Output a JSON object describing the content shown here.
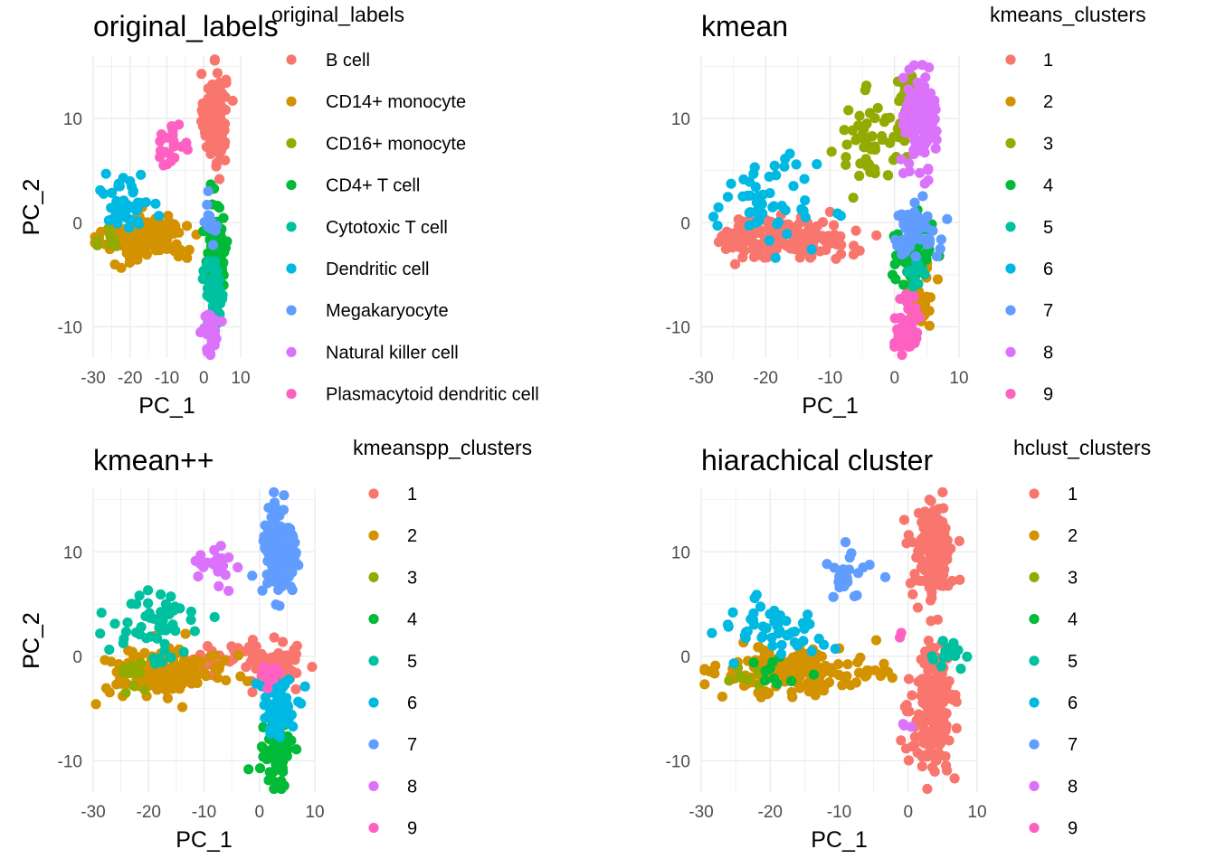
{
  "palette": [
    "#F8766D",
    "#D39200",
    "#93AA00",
    "#00BA38",
    "#00C19F",
    "#00B9E3",
    "#619CFF",
    "#DB72FB",
    "#FF61C3"
  ],
  "chart_data": [
    {
      "type": "scatter",
      "title": "original_labels",
      "xlabel": "PC_1",
      "ylabel": "PC_2",
      "xlim": [
        -30,
        10
      ],
      "ylim": [
        -13,
        16
      ],
      "xticks": [
        -30,
        -20,
        -10,
        0,
        10
      ],
      "xtick_labels": [
        "-30",
        "-20",
        "-10",
        "0",
        "10"
      ],
      "yticks": [
        -10,
        0,
        10
      ],
      "ytick_labels": [
        "-10",
        "0",
        "10"
      ],
      "grid": true,
      "legend": {
        "title": "original_labels",
        "placement": "right",
        "entries": [
          "B cell",
          "CD14+ monocyte",
          "CD16+ monocyte",
          "CD4+ T cell",
          "Cytotoxic T cell",
          "Dendritic cell",
          "Megakaryocyte",
          "Natural killer cell",
          "Plasmacytoid dendritic cell"
        ]
      },
      "series": [
        {
          "name": "B cell",
          "color_index": 0,
          "clusters": [
            {
              "cx": 3,
              "cy": 10,
              "sx": 1.5,
              "sy": 2.2,
              "n": 160
            }
          ]
        },
        {
          "name": "CD14+ monocyte",
          "color_index": 1,
          "clusters": [
            {
              "cx": -16,
              "cy": -1.5,
              "sx": 5.5,
              "sy": 1.1,
              "n": 140
            }
          ]
        },
        {
          "name": "CD16+ monocyte",
          "color_index": 2,
          "clusters": [
            {
              "cx": -25,
              "cy": -1.5,
              "sx": 1.5,
              "sy": 0.8,
              "n": 12
            }
          ]
        },
        {
          "name": "CD4+ T cell",
          "color_index": 3,
          "clusters": [
            {
              "cx": 3.5,
              "cy": -2.5,
              "sx": 1.5,
              "sy": 2.2,
              "n": 90
            }
          ]
        },
        {
          "name": "Cytotoxic T cell",
          "color_index": 4,
          "clusters": [
            {
              "cx": 3,
              "cy": -7,
              "sx": 1.2,
              "sy": 1.5,
              "n": 70
            }
          ]
        },
        {
          "name": "Dendritic cell",
          "color_index": 5,
          "clusters": [
            {
              "cx": -21,
              "cy": 2,
              "sx": 3,
              "sy": 1.5,
              "n": 45
            }
          ]
        },
        {
          "name": "Megakaryocyte",
          "color_index": 6,
          "clusters": [
            {
              "cx": 2,
              "cy": 0,
              "sx": 1.2,
              "sy": 1.0,
              "n": 12
            }
          ]
        },
        {
          "name": "Natural killer cell",
          "color_index": 7,
          "clusters": [
            {
              "cx": 2,
              "cy": -10.5,
              "sx": 1.0,
              "sy": 1.0,
              "n": 50
            }
          ]
        },
        {
          "name": "Plasmacytoid dendritic cell",
          "color_index": 8,
          "clusters": [
            {
              "cx": -9,
              "cy": 7.5,
              "sx": 2.5,
              "sy": 1.0,
              "n": 22
            }
          ]
        }
      ]
    },
    {
      "type": "scatter",
      "title": "kmean",
      "xlabel": "PC_1",
      "ylabel": "PC_2",
      "xlim": [
        -30,
        10
      ],
      "ylim": [
        -13,
        16
      ],
      "xticks": [
        -30,
        -20,
        -10,
        0,
        10
      ],
      "xtick_labels": [
        "-30",
        "-20",
        "-10",
        "0",
        "10"
      ],
      "yticks": [
        -10,
        0,
        10
      ],
      "ytick_labels": [
        "-10",
        "0",
        "10"
      ],
      "grid": true,
      "legend": {
        "title": "kmeans_clusters",
        "placement": "right",
        "entries": [
          "1",
          "2",
          "3",
          "4",
          "5",
          "6",
          "7",
          "8",
          "9"
        ]
      },
      "series": [
        {
          "name": "1",
          "color_index": 0,
          "clusters": [
            {
              "cx": -17,
              "cy": -1.5,
              "sx": 5,
              "sy": 1.0,
              "n": 150
            }
          ]
        },
        {
          "name": "2",
          "color_index": 1,
          "clusters": [
            {
              "cx": 4,
              "cy": -7,
              "sx": 1.2,
              "sy": 1.5,
              "n": 40
            }
          ]
        },
        {
          "name": "3",
          "color_index": 2,
          "clusters": [
            {
              "cx": -4,
              "cy": 8,
              "sx": 2.5,
              "sy": 2.0,
              "n": 50
            },
            {
              "cx": 2,
              "cy": 11,
              "sx": 1.0,
              "sy": 2.0,
              "n": 30
            }
          ]
        },
        {
          "name": "4",
          "color_index": 3,
          "clusters": [
            {
              "cx": 3,
              "cy": -3,
              "sx": 1.5,
              "sy": 1.5,
              "n": 60
            }
          ]
        },
        {
          "name": "5",
          "color_index": 4,
          "clusters": [
            {
              "cx": 3,
              "cy": -5,
              "sx": 1.0,
              "sy": 1.0,
              "n": 15
            }
          ]
        },
        {
          "name": "6",
          "color_index": 5,
          "clusters": [
            {
              "cx": -20,
              "cy": 2,
              "sx": 4,
              "sy": 2.0,
              "n": 55
            }
          ]
        },
        {
          "name": "7",
          "color_index": 6,
          "clusters": [
            {
              "cx": 3,
              "cy": -1,
              "sx": 2.0,
              "sy": 1.5,
              "n": 50
            }
          ]
        },
        {
          "name": "8",
          "color_index": 7,
          "clusters": [
            {
              "cx": 4,
              "cy": 10,
              "sx": 1.2,
              "sy": 2.3,
              "n": 120
            }
          ]
        },
        {
          "name": "9",
          "color_index": 8,
          "clusters": [
            {
              "cx": 2,
              "cy": -10,
              "sx": 1.0,
              "sy": 1.2,
              "n": 60
            }
          ]
        }
      ]
    },
    {
      "type": "scatter",
      "title": "kmean++",
      "xlabel": "PC_1",
      "ylabel": "PC_2",
      "xlim": [
        -30,
        10
      ],
      "ylim": [
        -13,
        16
      ],
      "xticks": [
        -30,
        -20,
        -10,
        0,
        10
      ],
      "xtick_labels": [
        "-30",
        "-20",
        "-10",
        "0",
        "10"
      ],
      "yticks": [
        -10,
        0,
        10
      ],
      "ytick_labels": [
        "-10",
        "0",
        "10"
      ],
      "grid": true,
      "legend": {
        "title": "kmeanspp_clusters",
        "placement": "right",
        "entries": [
          "1",
          "2",
          "3",
          "4",
          "5",
          "6",
          "7",
          "8",
          "9"
        ]
      },
      "series": [
        {
          "name": "1",
          "color_index": 0,
          "clusters": [
            {
              "cx": 3,
              "cy": -1,
              "sx": 2.5,
              "sy": 1.2,
              "n": 70
            },
            {
              "cx": -7,
              "cy": 0,
              "sx": 3,
              "sy": 0.6,
              "n": 25
            }
          ]
        },
        {
          "name": "2",
          "color_index": 1,
          "clusters": [
            {
              "cx": -17,
              "cy": -1.5,
              "sx": 5.5,
              "sy": 1.1,
              "n": 150
            }
          ]
        },
        {
          "name": "3",
          "color_index": 2,
          "clusters": [
            {
              "cx": -22,
              "cy": -1.5,
              "sx": 2.0,
              "sy": 0.8,
              "n": 15
            }
          ]
        },
        {
          "name": "4",
          "color_index": 3,
          "clusters": [
            {
              "cx": 3,
              "cy": -9.5,
              "sx": 1.2,
              "sy": 1.5,
              "n": 70
            }
          ]
        },
        {
          "name": "5",
          "color_index": 4,
          "clusters": [
            {
              "cx": -18,
              "cy": 3,
              "sx": 4.0,
              "sy": 1.8,
              "n": 55
            }
          ]
        },
        {
          "name": "6",
          "color_index": 5,
          "clusters": [
            {
              "cx": 3.5,
              "cy": -5,
              "sx": 1.5,
              "sy": 1.5,
              "n": 70
            }
          ]
        },
        {
          "name": "7",
          "color_index": 6,
          "clusters": [
            {
              "cx": 3.5,
              "cy": 10,
              "sx": 1.5,
              "sy": 2.3,
              "n": 160
            }
          ]
        },
        {
          "name": "8",
          "color_index": 7,
          "clusters": [
            {
              "cx": -8,
              "cy": 8,
              "sx": 2.5,
              "sy": 1.2,
              "n": 20
            }
          ]
        },
        {
          "name": "9",
          "color_index": 8,
          "clusters": [
            {
              "cx": 2,
              "cy": -2,
              "sx": 1.0,
              "sy": 1.0,
              "n": 12
            }
          ]
        }
      ]
    },
    {
      "type": "scatter",
      "title": "hiarachical cluster",
      "xlabel": "PC_1",
      "ylabel": "PC_2",
      "xlim": [
        -30,
        10
      ],
      "ylim": [
        -13,
        16
      ],
      "xticks": [
        -30,
        -20,
        -10,
        0,
        10
      ],
      "xtick_labels": [
        "-30",
        "-20",
        "-10",
        "0",
        "10"
      ],
      "yticks": [
        -10,
        0,
        10
      ],
      "ytick_labels": [
        "-10",
        "0",
        "10"
      ],
      "grid": true,
      "legend": {
        "title": "hclust_clusters",
        "placement": "right",
        "entries": [
          "1",
          "2",
          "3",
          "4",
          "5",
          "6",
          "7",
          "8",
          "9"
        ]
      },
      "series": [
        {
          "name": "1",
          "color_index": 0,
          "clusters": [
            {
              "cx": 3.5,
              "cy": 10,
              "sx": 1.5,
              "sy": 2.3,
              "n": 160
            },
            {
              "cx": 3.5,
              "cy": -5,
              "sx": 1.5,
              "sy": 3.0,
              "n": 190
            }
          ]
        },
        {
          "name": "2",
          "color_index": 1,
          "clusters": [
            {
              "cx": -16,
              "cy": -1.5,
              "sx": 6.0,
              "sy": 1.1,
              "n": 160
            }
          ]
        },
        {
          "name": "3",
          "color_index": 2,
          "clusters": [
            {
              "cx": -24,
              "cy": -1.8,
              "sx": 1.5,
              "sy": 0.6,
              "n": 8
            }
          ]
        },
        {
          "name": "4",
          "color_index": 3,
          "clusters": [
            {
              "cx": -20,
              "cy": -1.5,
              "sx": 2.0,
              "sy": 0.6,
              "n": 10
            }
          ]
        },
        {
          "name": "5",
          "color_index": 4,
          "clusters": [
            {
              "cx": 5,
              "cy": 0,
              "sx": 1.5,
              "sy": 0.7,
              "n": 14
            }
          ]
        },
        {
          "name": "6",
          "color_index": 5,
          "clusters": [
            {
              "cx": -20,
              "cy": 3,
              "sx": 4.0,
              "sy": 1.5,
              "n": 50
            }
          ]
        },
        {
          "name": "7",
          "color_index": 6,
          "clusters": [
            {
              "cx": -8,
              "cy": 8,
              "sx": 1.8,
              "sy": 1.2,
              "n": 22
            }
          ]
        },
        {
          "name": "8",
          "color_index": 7,
          "clusters": [
            {
              "cx": 0,
              "cy": -6.5,
              "sx": 0.5,
              "sy": 0.5,
              "n": 3
            }
          ]
        },
        {
          "name": "9",
          "color_index": 8,
          "clusters": [
            {
              "cx": -1,
              "cy": 3,
              "sx": 0.5,
              "sy": 0.5,
              "n": 2
            }
          ]
        }
      ]
    }
  ]
}
